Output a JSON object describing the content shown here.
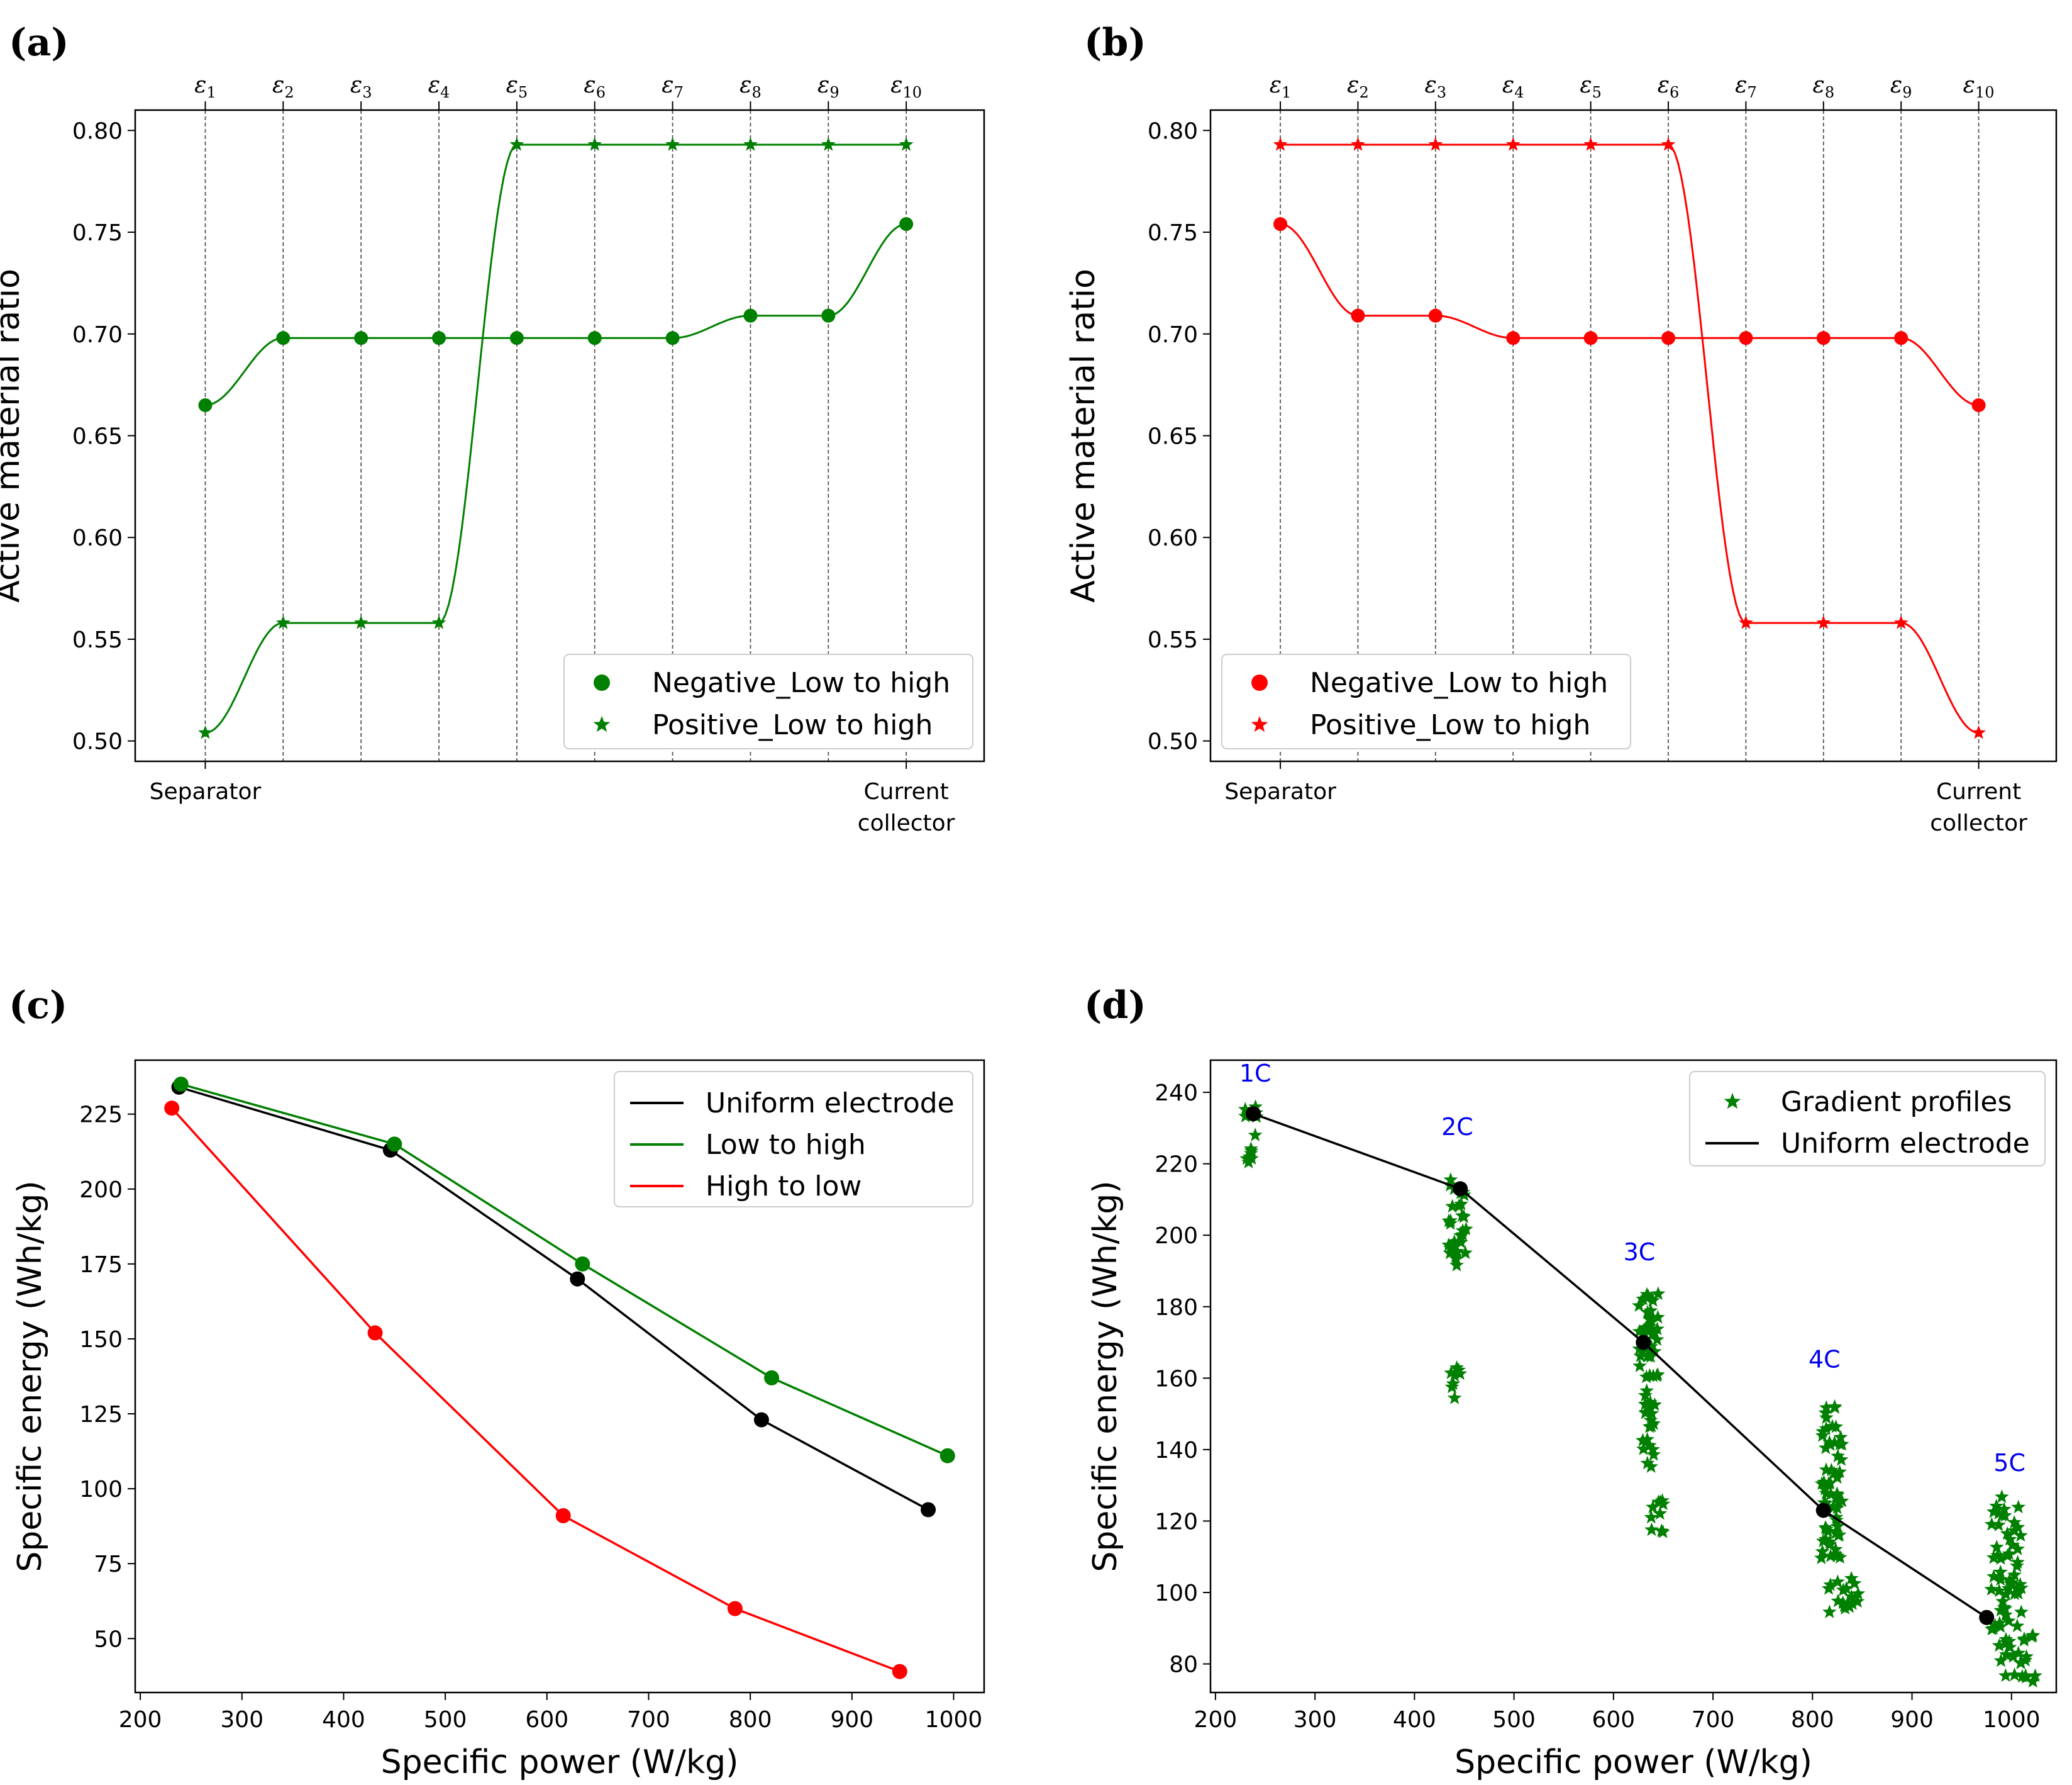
{
  "panels": {
    "a": {
      "label": "(a)"
    },
    "b": {
      "label": "(b)"
    },
    "c": {
      "label": "(c)"
    },
    "d": {
      "label": "(d)"
    }
  },
  "colors": {
    "green": "#008000",
    "red": "#ff0000",
    "black": "#000000",
    "blue": "#0000ee"
  },
  "chart_data": [
    {
      "id": "a",
      "type": "line",
      "ylabel": "Active material ratio",
      "ylim": [
        0.49,
        0.81
      ],
      "yticks": [
        "0.50",
        "0.55",
        "0.60",
        "0.65",
        "0.70",
        "0.75",
        "0.80"
      ],
      "xlim": [
        0.1,
        11.0
      ],
      "x_end_labels": {
        "left": "Separator",
        "right_line1": "Current",
        "right_line2": "collector"
      },
      "top_ticks": [
        "ε1",
        "ε2",
        "ε3",
        "ε4",
        "ε5",
        "ε6",
        "ε7",
        "ε8",
        "ε9",
        "ε10"
      ],
      "x": [
        1,
        2,
        3,
        4,
        5,
        6,
        7,
        8,
        9,
        10
      ],
      "legend_position": "lower-right",
      "series": [
        {
          "name": "Negative_Low to high",
          "marker": "circle",
          "color": "#008000",
          "values": [
            0.665,
            0.698,
            0.698,
            0.698,
            0.698,
            0.698,
            0.698,
            0.709,
            0.709,
            0.754
          ]
        },
        {
          "name": "Positive_Low to high",
          "marker": "star",
          "color": "#008000",
          "values": [
            0.504,
            0.558,
            0.558,
            0.558,
            0.793,
            0.793,
            0.793,
            0.793,
            0.793,
            0.793
          ]
        }
      ]
    },
    {
      "id": "b",
      "type": "line",
      "ylabel": "Active material ratio",
      "ylim": [
        0.49,
        0.81
      ],
      "yticks": [
        "0.50",
        "0.55",
        "0.60",
        "0.65",
        "0.70",
        "0.75",
        "0.80"
      ],
      "xlim": [
        0.1,
        11.0
      ],
      "x_end_labels": {
        "left": "Separator",
        "right_line1": "Current",
        "right_line2": "collector"
      },
      "top_ticks": [
        "ε1",
        "ε2",
        "ε3",
        "ε4",
        "ε5",
        "ε6",
        "ε7",
        "ε8",
        "ε9",
        "ε10"
      ],
      "x": [
        1,
        2,
        3,
        4,
        5,
        6,
        7,
        8,
        9,
        10
      ],
      "legend_position": "lower-left",
      "series": [
        {
          "name": "Negative_Low to high",
          "marker": "circle",
          "color": "#ff0000",
          "values": [
            0.754,
            0.709,
            0.709,
            0.698,
            0.698,
            0.698,
            0.698,
            0.698,
            0.698,
            0.665
          ]
        },
        {
          "name": "Positive_Low to high",
          "marker": "star",
          "color": "#ff0000",
          "values": [
            0.793,
            0.793,
            0.793,
            0.793,
            0.793,
            0.793,
            0.558,
            0.558,
            0.558,
            0.504
          ]
        }
      ]
    },
    {
      "id": "c",
      "type": "line",
      "xlabel": "Specific power (W/kg)",
      "ylabel": "Specific energy (Wh/kg)",
      "xlim": [
        195,
        1030
      ],
      "ylim": [
        32,
        243
      ],
      "xticks": [
        200,
        300,
        400,
        500,
        600,
        700,
        800,
        900,
        1000
      ],
      "yticks": [
        50,
        75,
        100,
        125,
        150,
        175,
        200,
        225
      ],
      "legend_position": "top-right",
      "series": [
        {
          "name": "Uniform electrode",
          "color": "#000000",
          "x": [
            238,
            446,
            630,
            811,
            975
          ],
          "y": [
            234,
            213,
            170,
            123,
            93
          ]
        },
        {
          "name": "Low to high",
          "color": "#008000",
          "x": [
            240,
            450,
            635,
            821,
            994
          ],
          "y": [
            235,
            215,
            175,
            137,
            111
          ]
        },
        {
          "name": "High to low",
          "color": "#ff0000",
          "x": [
            231,
            431,
            616,
            785,
            947
          ],
          "y": [
            227,
            152,
            91,
            60,
            39
          ]
        }
      ]
    },
    {
      "id": "d",
      "type": "scatter",
      "xlabel": "Specific power (W/kg)",
      "ylabel": "Specific energy (Wh/kg)",
      "xlim": [
        195,
        1045
      ],
      "ylim": [
        72,
        249
      ],
      "xticks": [
        200,
        300,
        400,
        500,
        600,
        700,
        800,
        900,
        1000
      ],
      "yticks": [
        80,
        100,
        120,
        140,
        160,
        180,
        200,
        220,
        240
      ],
      "legend_position": "top-right",
      "annotations": [
        {
          "text": "1C",
          "x": 240,
          "y": 243
        },
        {
          "text": "2C",
          "x": 443,
          "y": 228
        },
        {
          "text": "3C",
          "x": 626,
          "y": 193
        },
        {
          "text": "4C",
          "x": 812,
          "y": 163
        },
        {
          "text": "5C",
          "x": 998,
          "y": 134
        }
      ],
      "series": [
        {
          "name": "Gradient profiles",
          "marker": "star",
          "color": "#008000",
          "clusters": [
            {
              "x_range": [
                228,
                242
              ],
              "y_range": [
                220,
                236
              ],
              "n": 14
            },
            {
              "x_range": [
                434,
                452
              ],
              "y_range": [
                190,
                216
              ],
              "n": 30
            },
            {
              "x_range": [
                436,
                446
              ],
              "y_range": [
                154,
                163
              ],
              "n": 8
            },
            {
              "x_range": [
                625,
                645
              ],
              "y_range": [
                160,
                184
              ],
              "n": 40
            },
            {
              "x_range": [
                628,
                642
              ],
              "y_range": [
                135,
                157
              ],
              "n": 22
            },
            {
              "x_range": [
                636,
                652
              ],
              "y_range": [
                116,
                126
              ],
              "n": 10
            },
            {
              "x_range": [
                808,
                830
              ],
              "y_range": [
                108,
                152
              ],
              "n": 60
            },
            {
              "x_range": [
                812,
                846
              ],
              "y_range": [
                94,
                104
              ],
              "n": 18
            },
            {
              "x_range": [
                978,
                1010
              ],
              "y_range": [
                88,
                127
              ],
              "n": 55
            },
            {
              "x_range": [
                985,
                1025
              ],
              "y_range": [
                75,
                88
              ],
              "n": 25
            }
          ]
        },
        {
          "name": "Uniform electrode",
          "line": true,
          "color": "#000000",
          "x": [
            238,
            446,
            630,
            811,
            975
          ],
          "y": [
            234,
            213,
            170,
            123,
            93
          ]
        }
      ]
    }
  ]
}
